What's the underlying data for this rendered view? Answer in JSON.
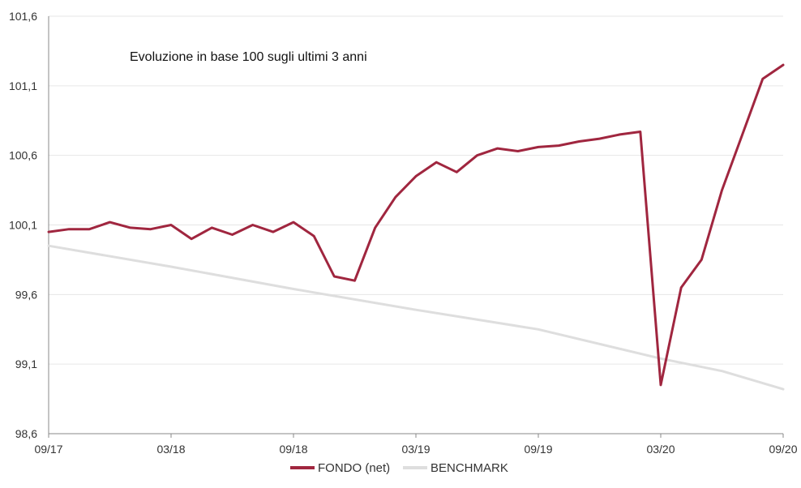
{
  "chart_data": {
    "type": "line",
    "title": "",
    "annotation": "Evoluzione in base 100 sugli ultimi 3 anni",
    "xlabel": "",
    "ylabel": "",
    "ylim": [
      98.6,
      101.6
    ],
    "y_ticks": [
      "98,6",
      "99,1",
      "99,6",
      "100,1",
      "100,6",
      "101,1",
      "101,6"
    ],
    "y_tick_values": [
      98.6,
      99.1,
      99.6,
      100.1,
      100.6,
      101.1,
      101.6
    ],
    "x_ticks": [
      "09/17",
      "03/18",
      "09/18",
      "03/19",
      "09/19",
      "03/20",
      "09/20"
    ],
    "x_tick_values": [
      "2017-09",
      "2018-03",
      "2018-09",
      "2019-03",
      "2019-09",
      "2020-03",
      "2020-09"
    ],
    "xlim": [
      "2017-09",
      "2020-09"
    ],
    "grid": true,
    "legend_position": "bottom-center",
    "colors": {
      "fondo": "#a0263f",
      "benchmark": "#dedede",
      "grid": "#e6e6e6",
      "axis": "#888888"
    },
    "series": [
      {
        "name": "FONDO (net)",
        "x": [
          "2017-09",
          "2017-10",
          "2017-11",
          "2017-12",
          "2018-01",
          "2018-02",
          "2018-03",
          "2018-04",
          "2018-05",
          "2018-06",
          "2018-07",
          "2018-08",
          "2018-09",
          "2018-10",
          "2018-11",
          "2018-12",
          "2019-01",
          "2019-02",
          "2019-03",
          "2019-04",
          "2019-05",
          "2019-06",
          "2019-07",
          "2019-08",
          "2019-09",
          "2019-10",
          "2019-11",
          "2019-12",
          "2020-01",
          "2020-02",
          "2020-03",
          "2020-04",
          "2020-05",
          "2020-06",
          "2020-07",
          "2020-08",
          "2020-09"
        ],
        "values": [
          100.05,
          100.07,
          100.07,
          100.12,
          100.08,
          100.07,
          100.1,
          100.0,
          100.08,
          100.03,
          100.1,
          100.05,
          100.12,
          100.02,
          99.73,
          99.7,
          100.08,
          100.3,
          100.45,
          100.55,
          100.48,
          100.6,
          100.65,
          100.63,
          100.66,
          100.67,
          100.7,
          100.72,
          100.75,
          100.77,
          98.95,
          99.65,
          99.85,
          100.35,
          100.75,
          101.15,
          101.25
        ]
      },
      {
        "name": "BENCHMARK",
        "x": [
          "2017-09",
          "2018-03",
          "2018-09",
          "2019-03",
          "2019-09",
          "2020-03",
          "2020-06",
          "2020-09"
        ],
        "values": [
          99.95,
          99.8,
          99.64,
          99.49,
          99.35,
          99.14,
          99.05,
          98.92
        ]
      }
    ]
  }
}
